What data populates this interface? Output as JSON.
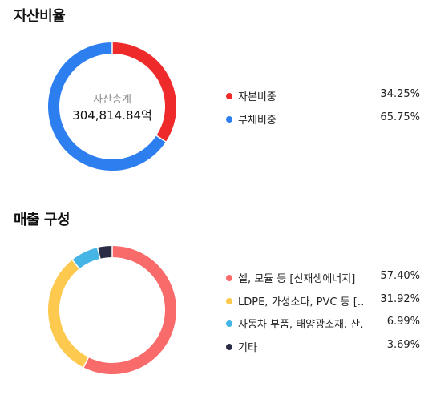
{
  "asset_ratio": {
    "title": "자산비율",
    "center_caption": "자산총계",
    "center_value": "304,814.84억",
    "items": [
      {
        "name": "자본비중",
        "percent_label": "34.25%",
        "value": 34.25,
        "color": "#ef2a2a"
      },
      {
        "name": "부채비중",
        "percent_label": "65.75%",
        "value": 65.75,
        "color": "#2d7ff0"
      }
    ]
  },
  "sales_composition": {
    "title": "매출 구성",
    "items": [
      {
        "name": "셀, 모듈 등 [신재생에너지]",
        "percent_label": "57.40%",
        "value": 57.4,
        "color": "#f96b6b"
      },
      {
        "name": "LDPE, 가성소다, PVC 등 […",
        "percent_label": "31.92%",
        "value": 31.92,
        "color": "#fdc94f"
      },
      {
        "name": "자동차 부품, 태양광소재, 산…",
        "percent_label": "6.99%",
        "value": 6.99,
        "color": "#45b5e6"
      },
      {
        "name": "기타",
        "percent_label": "3.69%",
        "value": 3.69,
        "color": "#2a2d45"
      }
    ]
  }
}
